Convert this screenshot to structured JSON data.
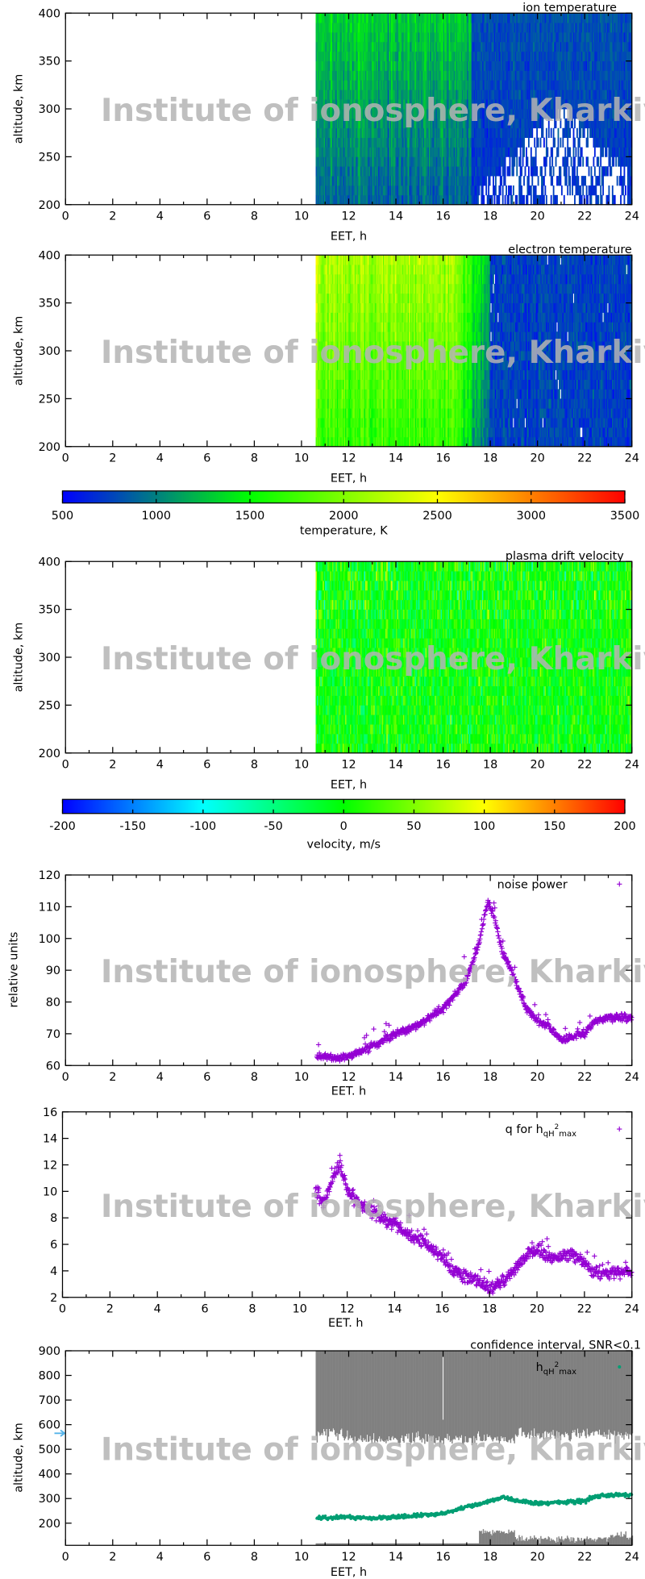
{
  "watermark": "Institute of ionosphere, Kharkiv",
  "chart_data": [
    {
      "type": "heatmap",
      "title": "ion temperature",
      "xlabel": "EET, h",
      "ylabel": "altitude, km",
      "xlim": [
        0,
        24
      ],
      "ylim": [
        200,
        400
      ],
      "xticks": [
        "0",
        "2",
        "4",
        "6",
        "8",
        "10",
        "12",
        "14",
        "16",
        "18",
        "20",
        "22",
        "24"
      ],
      "yticks": [
        "200",
        "250",
        "300",
        "350",
        "400"
      ],
      "data_start_h": 10.6,
      "colorbar": "temperature"
    },
    {
      "type": "heatmap",
      "title": "electron temperature",
      "xlabel": "EET, h",
      "ylabel": "altitude, km",
      "xlim": [
        0,
        24
      ],
      "ylim": [
        200,
        400
      ],
      "xticks": [
        "0",
        "2",
        "4",
        "6",
        "8",
        "10",
        "12",
        "14",
        "16",
        "18",
        "20",
        "22",
        "24"
      ],
      "yticks": [
        "200",
        "250",
        "300",
        "350",
        "400"
      ],
      "data_start_h": 10.6,
      "colorbar": "temperature"
    },
    {
      "type": "colorbar",
      "label": "temperature, K",
      "range": [
        500,
        3500
      ],
      "ticks": [
        "500",
        "1000",
        "1500",
        "2000",
        "2500",
        "3000",
        "3500"
      ],
      "colors": [
        "#0000ff",
        "#00ff00",
        "#ffff00",
        "#ff0000"
      ]
    },
    {
      "type": "heatmap",
      "title": "plasma drift velocity",
      "xlabel": "EET, h",
      "ylabel": "altitude, km",
      "xlim": [
        0,
        24
      ],
      "ylim": [
        200,
        400
      ],
      "xticks": [
        "0",
        "2",
        "4",
        "6",
        "8",
        "10",
        "12",
        "14",
        "16",
        "18",
        "20",
        "22",
        "24"
      ],
      "yticks": [
        "200",
        "250",
        "300",
        "350",
        "400"
      ],
      "data_start_h": 10.6,
      "colorbar": "velocity"
    },
    {
      "type": "colorbar",
      "label": "velocity, m/s",
      "range": [
        -200,
        200
      ],
      "ticks": [
        "-200",
        "-150",
        "-100",
        "-50",
        "0",
        "50",
        "100",
        "150",
        "200"
      ],
      "colors": [
        "#0000ff",
        "#00ffff",
        "#00ff00",
        "#ffff00",
        "#ff0000"
      ]
    },
    {
      "type": "scatter",
      "xlabel": "EET. h",
      "ylabel": "relative units",
      "xlim": [
        0,
        24
      ],
      "ylim": [
        60,
        120
      ],
      "xticks": [
        "0",
        "2",
        "4",
        "6",
        "8",
        "10",
        "12",
        "14",
        "16",
        "18",
        "20",
        "22",
        "24"
      ],
      "yticks": [
        "60",
        "70",
        "80",
        "90",
        "100",
        "110",
        "120"
      ],
      "series": [
        {
          "name": "noise power",
          "color": "#9400d3",
          "x": [
            10.7,
            11.5,
            12,
            13,
            14,
            15,
            16,
            16.5,
            17,
            17.5,
            17.9,
            18.2,
            18.5,
            19,
            19.5,
            20,
            20.5,
            21,
            21.5,
            22,
            22.5,
            23,
            24
          ],
          "y": [
            63,
            62,
            63,
            66,
            70,
            73,
            78,
            82,
            87,
            98,
            112,
            106,
            96,
            88,
            78,
            74,
            72,
            68,
            69,
            70,
            74,
            75,
            75
          ]
        }
      ]
    },
    {
      "type": "scatter",
      "xlabel": "EET. h",
      "ylabel": "",
      "xlim": [
        0,
        24
      ],
      "ylim": [
        2,
        16
      ],
      "xticks": [
        "0",
        "2",
        "4",
        "6",
        "8",
        "10",
        "12",
        "14",
        "16",
        "18",
        "20",
        "22",
        "24"
      ],
      "yticks": [
        "2",
        "4",
        "6",
        "8",
        "10",
        "12",
        "14",
        "16"
      ],
      "series": [
        {
          "name": "q for hqH²max",
          "legend_parts": [
            "q for h",
            "qH",
            "2",
            "max"
          ],
          "color": "#9400d3",
          "x": [
            10.7,
            11,
            11.5,
            11.7,
            12,
            12.5,
            13,
            13.5,
            14,
            14.5,
            15,
            15.5,
            16,
            16.5,
            17,
            17.5,
            18,
            18.5,
            19,
            19.5,
            20,
            20.5,
            21,
            21.5,
            22,
            22.5,
            23,
            24
          ],
          "y": [
            10,
            9,
            11.5,
            12,
            10,
            9,
            8.5,
            8,
            7.5,
            6.8,
            6.5,
            5.8,
            5,
            4,
            3.7,
            3.2,
            2.6,
            3,
            4,
            5,
            5.5,
            5,
            5,
            5.3,
            4.5,
            3.8,
            3.8,
            4
          ]
        }
      ]
    },
    {
      "type": "scatter",
      "title": "confidence interval, SNR<0.1",
      "xlabel": "EET, h",
      "ylabel": "altitude, km",
      "xlim": [
        0,
        24
      ],
      "ylim": [
        110,
        900
      ],
      "xticks": [
        "0",
        "2",
        "4",
        "6",
        "8",
        "10",
        "12",
        "14",
        "16",
        "18",
        "20",
        "22",
        "24"
      ],
      "yticks": [
        "200",
        "300",
        "400",
        "500",
        "600",
        "700",
        "800",
        "900"
      ],
      "marker_altitude_km": 565,
      "marker_color": "#56b4e9",
      "confidence_color": "#808080",
      "series": [
        {
          "name": "hqH²max",
          "legend_parts": [
            "h",
            "qH",
            "2",
            "max"
          ],
          "color": "#009e73",
          "x": [
            10.7,
            12,
            13,
            14,
            15,
            16,
            17,
            18,
            18.5,
            19,
            20,
            21,
            22,
            22.5,
            23,
            24
          ],
          "y": [
            220,
            225,
            220,
            225,
            230,
            240,
            265,
            290,
            305,
            295,
            280,
            285,
            290,
            310,
            315,
            315
          ]
        }
      ]
    }
  ]
}
